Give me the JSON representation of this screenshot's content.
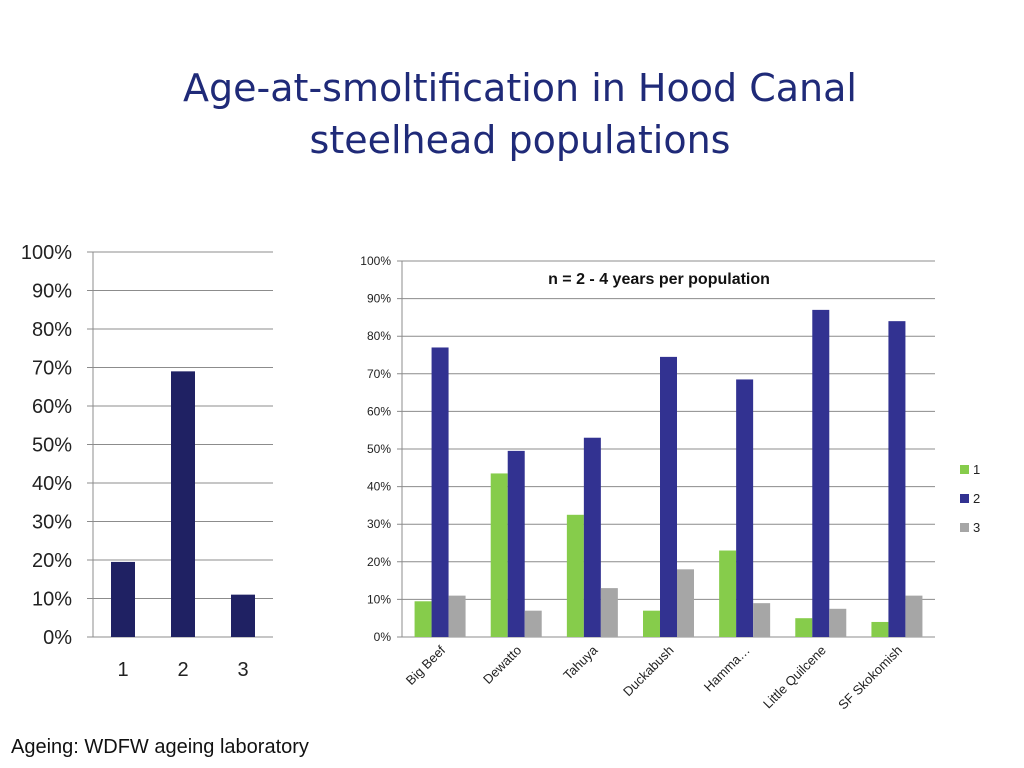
{
  "slide": {
    "title_line1": "Age-at-smoltification in Hood Canal",
    "title_line2": "steelhead populations",
    "footer": "Ageing: WDFW ageing laboratory"
  },
  "colors": {
    "title": "#1f2a78",
    "left_bar": "#1f2163",
    "age1": "#86cc4b",
    "age2": "#323291",
    "age3": "#a6a6a6",
    "grid": "#8c8c8c"
  },
  "chart_data": [
    {
      "type": "bar",
      "categories": [
        "1",
        "2",
        "3"
      ],
      "values": [
        19.5,
        69,
        11
      ],
      "ylim": [
        0,
        100
      ],
      "yticks": [
        "0%",
        "10%",
        "20%",
        "30%",
        "40%",
        "50%",
        "60%",
        "70%",
        "80%",
        "90%",
        "100%"
      ],
      "grid": true,
      "legend": "none"
    },
    {
      "type": "bar",
      "annotation": "n = 2 - 4 years per population",
      "categories": [
        "Big Beef",
        "Dewatto",
        "Tahuya",
        "Duckabush",
        "Hamma…",
        "Little Quilcene",
        "SF Skokomish"
      ],
      "series": [
        {
          "name": "1",
          "values": [
            9.5,
            43.5,
            32.5,
            7,
            23,
            5,
            4
          ]
        },
        {
          "name": "2",
          "values": [
            77,
            49.5,
            53,
            74.5,
            68.5,
            87,
            84
          ]
        },
        {
          "name": "3",
          "values": [
            11,
            7,
            13,
            18,
            9,
            7.5,
            11
          ]
        }
      ],
      "ylim": [
        0,
        100
      ],
      "yticks": [
        "0%",
        "10%",
        "20%",
        "30%",
        "40%",
        "50%",
        "60%",
        "70%",
        "80%",
        "90%",
        "100%"
      ],
      "grid": true,
      "legend": "right"
    }
  ]
}
